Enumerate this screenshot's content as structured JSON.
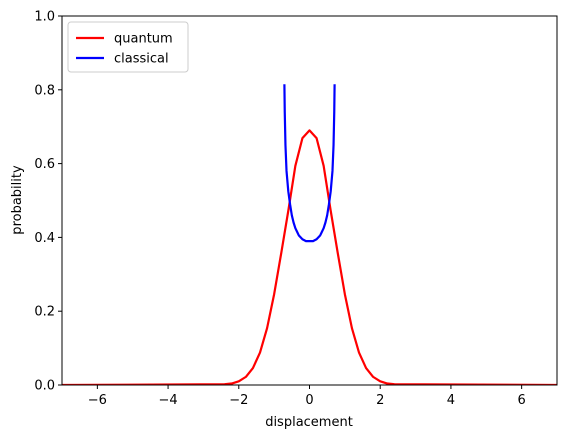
{
  "chart_data": {
    "type": "line",
    "xlabel": "displacement",
    "ylabel": "probability",
    "xlim": [
      -7,
      7
    ],
    "ylim": [
      0,
      1
    ],
    "x_ticks": [
      -6,
      -4,
      -2,
      0,
      2,
      4,
      6
    ],
    "x_tick_labels": [
      "−6",
      "−4",
      "−2",
      "0",
      "2",
      "4",
      "6"
    ],
    "y_ticks": [
      0.0,
      0.2,
      0.4,
      0.6,
      0.8,
      1.0
    ],
    "y_tick_labels": [
      "0.0",
      "0.2",
      "0.4",
      "0.6",
      "0.8",
      "1.0"
    ],
    "grid": false,
    "legend_position": "top-left",
    "series": [
      {
        "name": "quantum",
        "color": "#ff0000",
        "x": [
          -7,
          -2.4,
          -2.2,
          -2.0,
          -1.8,
          -1.6,
          -1.4,
          -1.2,
          -1.0,
          -0.8,
          -0.6,
          -0.4,
          -0.2,
          0.0,
          0.2,
          0.4,
          0.6,
          0.8,
          1.0,
          1.2,
          1.4,
          1.6,
          1.8,
          2.0,
          2.2,
          2.4,
          7
        ],
        "y": [
          0.0,
          0.002,
          0.004,
          0.01,
          0.022,
          0.046,
          0.088,
          0.154,
          0.246,
          0.357,
          0.472,
          0.594,
          0.669,
          0.69,
          0.669,
          0.594,
          0.472,
          0.357,
          0.246,
          0.154,
          0.088,
          0.046,
          0.022,
          0.01,
          0.004,
          0.002,
          0.0
        ]
      },
      {
        "name": "classical",
        "color": "#0000ff",
        "x": [
          -0.71,
          -0.7,
          -0.68,
          -0.65,
          -0.6,
          -0.55,
          -0.5,
          -0.45,
          -0.4,
          -0.35,
          -0.3,
          -0.2,
          -0.1,
          0.0,
          0.1,
          0.2,
          0.3,
          0.35,
          0.4,
          0.45,
          0.5,
          0.55,
          0.6,
          0.65,
          0.68,
          0.7,
          0.71
        ],
        "y": [
          0.815,
          0.74,
          0.65,
          0.58,
          0.525,
          0.49,
          0.46,
          0.44,
          0.425,
          0.415,
          0.405,
          0.395,
          0.39,
          0.39,
          0.39,
          0.395,
          0.405,
          0.415,
          0.425,
          0.44,
          0.46,
          0.49,
          0.525,
          0.58,
          0.65,
          0.74,
          0.815
        ]
      }
    ]
  }
}
